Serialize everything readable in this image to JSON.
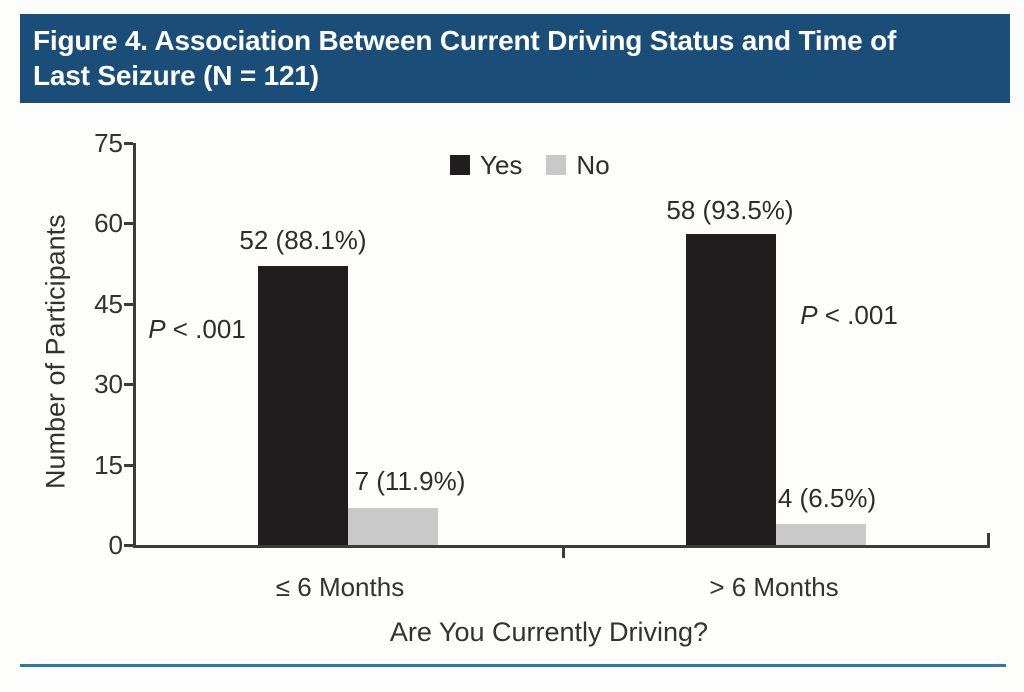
{
  "header": {
    "title_lines": [
      "Figure 4. Association Between Current Driving Status and Time of",
      "Last Seizure (N = 121)"
    ],
    "band_color": "#1a4e78",
    "text_color": "#ffffff"
  },
  "chart_data": {
    "type": "bar",
    "title": "Figure 4. Association Between Current Driving Status and Time of Last Seizure (N = 121)",
    "categories": [
      "≤ 6 Months",
      "> 6 Months"
    ],
    "series": [
      {
        "name": "Yes",
        "color": "#211d1e",
        "values": [
          52,
          58
        ],
        "labels": [
          "52 (88.1%)",
          "58 (93.5%)"
        ]
      },
      {
        "name": "No",
        "color": "#c9c9c9",
        "values": [
          7,
          4
        ],
        "labels": [
          "7 (11.9%)",
          "4 (6.5%)"
        ]
      }
    ],
    "xlabel": "Are You Currently Driving?",
    "ylabel": "Number of Participants",
    "ylim": [
      0,
      75
    ],
    "y_ticks": [
      0,
      15,
      30,
      45,
      60,
      75
    ],
    "grid": "off",
    "legend_position": "top-center",
    "annotations": [
      {
        "p": "P",
        "rest": " < .001"
      },
      {
        "p": "P",
        "rest": " < .001"
      }
    ]
  },
  "footer": {
    "rule_color": "#2b7aa6"
  }
}
